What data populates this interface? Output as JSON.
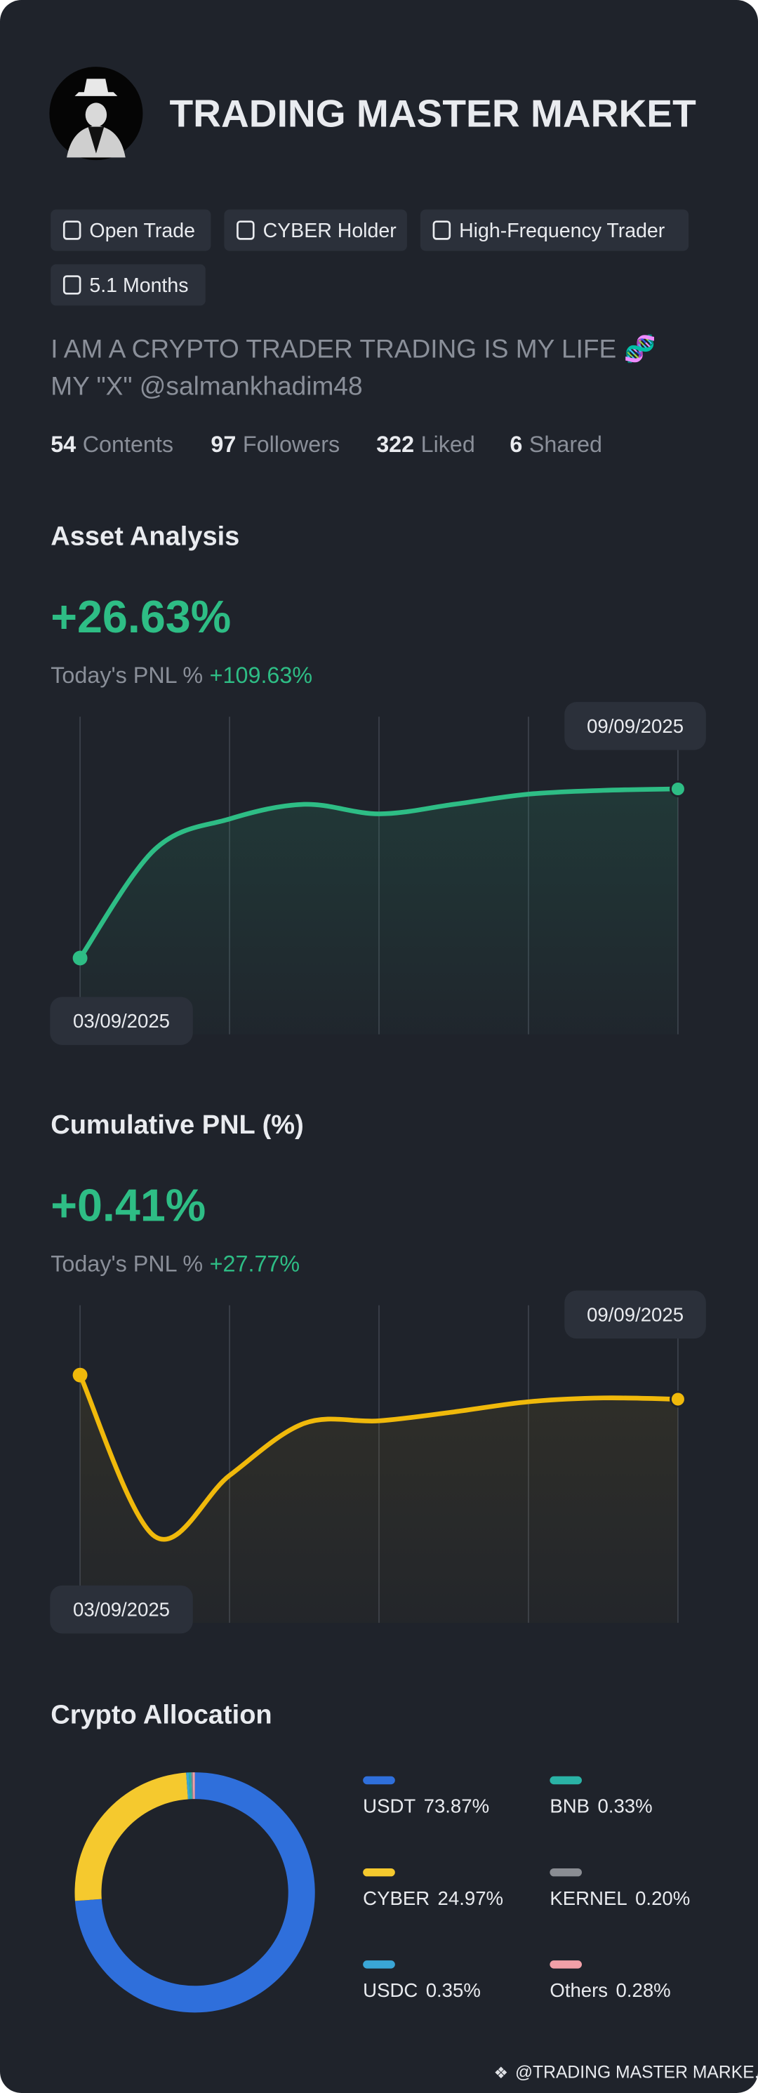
{
  "profile": {
    "name": "TRADING MASTER MARKET",
    "tags": [
      "Open Trade",
      "CYBER Holder",
      "High-Frequency Trader",
      "5.1 Months"
    ],
    "bio": [
      "I AM A CRYPTO TRADER TRADING IS MY LIFE 🧬",
      "MY \"X\"  @salmankhadim48"
    ],
    "stats": [
      {
        "value": 54,
        "label": "Contents"
      },
      {
        "value": 97,
        "label": "Followers"
      },
      {
        "value": 322,
        "label": "Liked"
      },
      {
        "value": 6,
        "label": "Shared"
      }
    ]
  },
  "chart_data": [
    {
      "type": "line",
      "title": "Asset Analysis",
      "headline": "+26.63%",
      "pnl_label": "Today's PNL %",
      "pnl_value": "+109.63%",
      "categories": [
        "03/09/2025",
        null,
        null,
        null,
        null,
        null,
        null,
        null,
        "09/09/2025"
      ],
      "series": [
        {
          "color": "#2ebd85",
          "values": [
            0,
            17.1,
            21.9,
            24.2,
            22.7,
            24.2,
            25.8,
            26.4,
            26.63
          ]
        }
      ],
      "ylim": [
        -12,
        38
      ]
    },
    {
      "type": "line",
      "title": "Cumulative PNL (%)",
      "headline": "+0.41%",
      "pnl_label": "Today's PNL %",
      "pnl_value": "+27.77%",
      "categories": [
        "03/09/2025",
        null,
        null,
        null,
        null,
        null,
        null,
        null,
        "09/09/2025"
      ],
      "series": [
        {
          "color": "#f0b90b",
          "values": [
            0.6,
            -0.67,
            -0.19,
            0.22,
            0.24,
            0.31,
            0.39,
            0.42,
            0.41
          ]
        }
      ],
      "ylim": [
        -1.35,
        1.15
      ]
    },
    {
      "type": "pie",
      "title": "Crypto Allocation",
      "categories": [
        "USDT",
        "CYBER",
        "USDC",
        "BNB",
        "KERNEL",
        "Others"
      ],
      "values": [
        73.87,
        24.97,
        0.35,
        0.33,
        0.2,
        0.28
      ],
      "value_labels": [
        "73.87%",
        "24.97%",
        "0.35%",
        "0.33%",
        "0.20%",
        "0.28%"
      ],
      "colors": [
        "#2f6fdb",
        "#f5c92e",
        "#3aa6d6",
        "#2ab3a6",
        "#8a8d93",
        "#f2a0a8"
      ]
    }
  ],
  "footer": "@TRADING MASTER MARKE..."
}
